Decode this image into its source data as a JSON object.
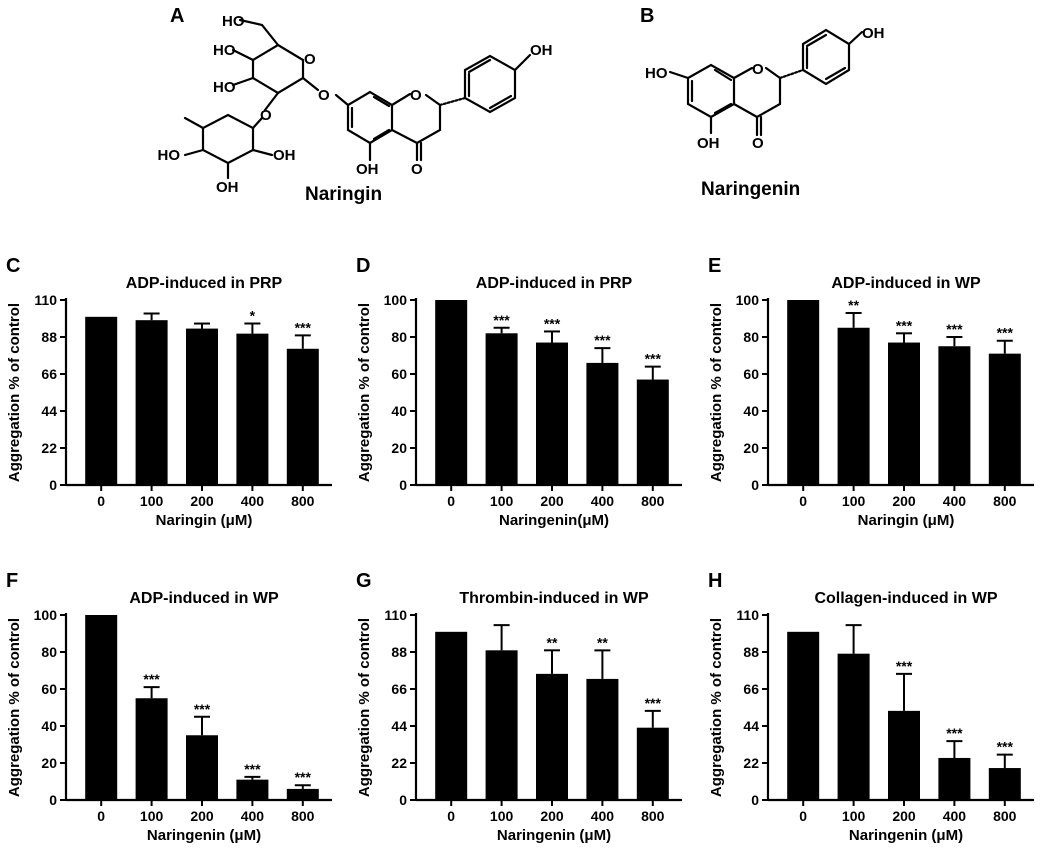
{
  "panel_letters": {
    "A": "A",
    "B": "B"
  },
  "structures": {
    "naringin": {
      "name": "Naringin",
      "atoms": {
        "ho_ch2": "HO",
        "ho_glc4": "HO",
        "ho_glc3": "HO",
        "ring_o_glc": "O",
        "glyc_o": "O",
        "link_o": "O",
        "rha_o": "O",
        "ho_rha4": "HO",
        "oh_rha3": "OH",
        "oh_rha2": "OH",
        "c_ring_o": "O",
        "oh_5": "OH",
        "keto_o": "O",
        "oh_4p": "OH"
      }
    },
    "naringenin": {
      "name": "Naringenin",
      "atoms": {
        "ho_7": "HO",
        "c_ring_o": "O",
        "oh_5": "OH",
        "keto_o": "O",
        "oh_4p": "OH"
      }
    }
  },
  "chart_data": [
    {
      "panel": "C",
      "type": "bar",
      "title": "ADP-induced in PRP",
      "xlabel": "Naringin (μM)",
      "ylabel": "Aggregation % of control",
      "categories": [
        "0",
        "100",
        "200",
        "400",
        "800"
      ],
      "values": [
        100,
        98,
        93,
        90,
        81
      ],
      "errors": [
        0,
        4,
        3,
        6,
        8
      ],
      "significance": [
        "",
        "",
        "",
        "*",
        "***"
      ],
      "yticks": [
        0,
        22,
        44,
        66,
        88,
        110
      ],
      "ylim": [
        0,
        110
      ],
      "grid": false
    },
    {
      "panel": "D",
      "type": "bar",
      "title": "ADP-induced in PRP",
      "xlabel": "Naringenin(μM)",
      "ylabel": "Aggregation % of control",
      "categories": [
        "0",
        "100",
        "200",
        "400",
        "800"
      ],
      "values": [
        100,
        82,
        77,
        66,
        57
      ],
      "errors": [
        0,
        3,
        6,
        8,
        7
      ],
      "significance": [
        "",
        "***",
        "***",
        "***",
        "***"
      ],
      "yticks": [
        0,
        20,
        40,
        60,
        80,
        100
      ],
      "ylim": [
        0,
        100
      ],
      "grid": false
    },
    {
      "panel": "E",
      "type": "bar",
      "title": "ADP-induced in WP",
      "xlabel": "Naringin (μM)",
      "ylabel": "Aggregation % of control",
      "categories": [
        "0",
        "100",
        "200",
        "400",
        "800"
      ],
      "values": [
        100,
        85,
        77,
        75,
        71
      ],
      "errors": [
        0,
        8,
        5,
        5,
        7
      ],
      "significance": [
        "",
        "**",
        "***",
        "***",
        "***"
      ],
      "yticks": [
        0,
        20,
        40,
        60,
        80,
        100
      ],
      "ylim": [
        0,
        100
      ],
      "grid": false
    },
    {
      "panel": "F",
      "type": "bar",
      "title": "ADP-induced in WP",
      "xlabel": "Naringenin (μM)",
      "ylabel": "Aggregation % of control",
      "categories": [
        "0",
        "100",
        "200",
        "400",
        "800"
      ],
      "values": [
        100,
        55,
        35,
        11,
        6
      ],
      "errors": [
        0,
        6,
        10,
        1.5,
        2
      ],
      "significance": [
        "",
        "***",
        "***",
        "***",
        "***"
      ],
      "yticks": [
        0,
        20,
        40,
        60,
        80,
        100
      ],
      "ylim": [
        0,
        100
      ],
      "grid": false
    },
    {
      "panel": "G",
      "type": "bar",
      "title": "Thrombin-induced in WP",
      "xlabel": "Naringenin (μM)",
      "ylabel": "Aggregation % of control",
      "categories": [
        "0",
        "100",
        "200",
        "400",
        "800"
      ],
      "values": [
        100,
        89,
        75,
        72,
        43
      ],
      "errors": [
        0,
        15,
        14,
        17,
        10
      ],
      "significance": [
        "",
        "",
        "**",
        "**",
        "***"
      ],
      "yticks": [
        0,
        22,
        44,
        66,
        88,
        110
      ],
      "ylim": [
        0,
        110
      ],
      "grid": false
    },
    {
      "panel": "H",
      "type": "bar",
      "title": "Collagen-induced in WP",
      "xlabel": "Naringenin (μM)",
      "ylabel": "Aggregation % of control",
      "categories": [
        "0",
        "100",
        "200",
        "400",
        "800"
      ],
      "values": [
        100,
        87,
        53,
        25,
        19
      ],
      "errors": [
        0,
        17,
        22,
        10,
        8
      ],
      "significance": [
        "",
        "",
        "***",
        "***",
        "***"
      ],
      "yticks": [
        0,
        22,
        44,
        66,
        88,
        110
      ],
      "ylim": [
        0,
        110
      ],
      "grid": false
    }
  ]
}
